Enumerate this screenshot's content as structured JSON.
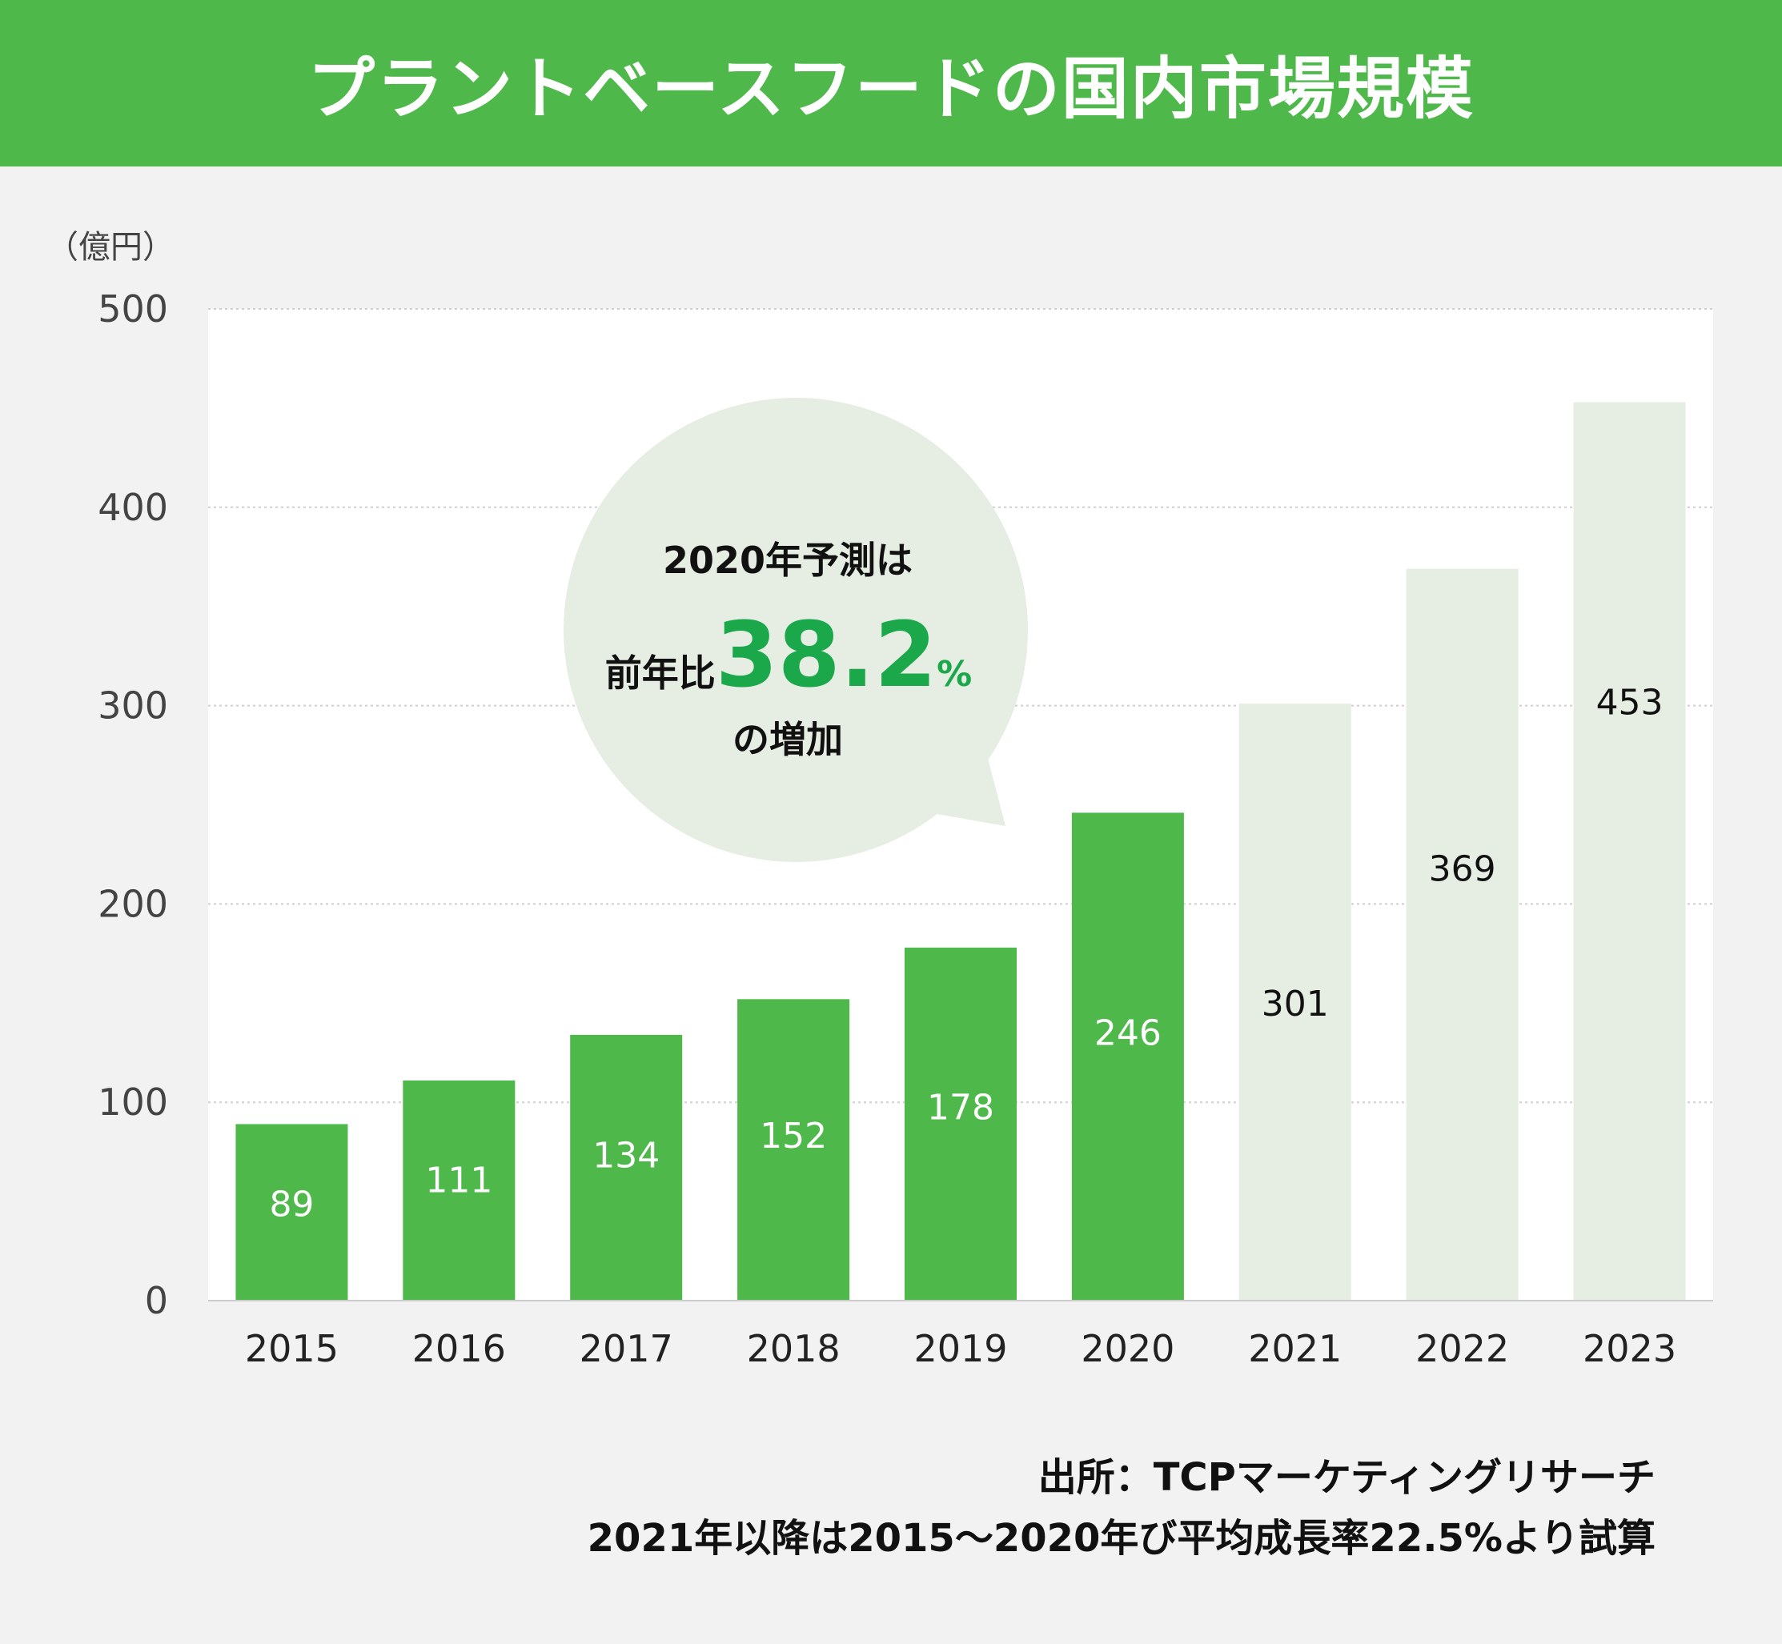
{
  "title": "プラントベースフードの国内市場規模",
  "footer": {
    "source": "出所：TCPマーケティングリサーチ",
    "note": "2021年以降は2015～2020年び平均成長率22.5%より試算"
  },
  "callout": {
    "line1": "2020年予測は",
    "prefix": "前年比",
    "value": "38.2",
    "unit": "%",
    "line3": "の増加"
  },
  "colors": {
    "primary": "#4eb84b",
    "forecast": "#e6ede2",
    "callout_bg": "#e6ede2",
    "callout_value": "#1aa84a"
  },
  "chart_data": {
    "type": "bar",
    "title": "プラントベースフードの国内市場規模",
    "ylabel": "（億円）",
    "xlabel": "",
    "ylim": [
      0,
      500
    ],
    "yticks": [
      0,
      100,
      200,
      300,
      400,
      500
    ],
    "categories": [
      "2015",
      "2016",
      "2017",
      "2018",
      "2019",
      "2020",
      "2021",
      "2022",
      "2023"
    ],
    "values": [
      89,
      111,
      134,
      152,
      178,
      246,
      301,
      369,
      453
    ],
    "labels": [
      "89",
      "111",
      "134",
      "152",
      "178",
      "246",
      "301",
      "369",
      "453"
    ],
    "forecast": [
      false,
      false,
      false,
      false,
      false,
      false,
      true,
      true,
      true
    ],
    "grid": true
  }
}
